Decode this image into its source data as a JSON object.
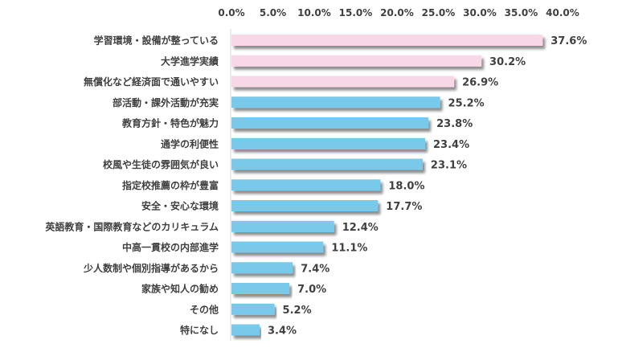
{
  "chart_data": {
    "type": "bar",
    "orientation": "horizontal",
    "title": "",
    "xlabel": "",
    "ylabel": "",
    "xlim": [
      0,
      40
    ],
    "grid": false,
    "tick_labels": [
      "0.0%",
      "5.0%",
      "10.0%",
      "15.0%",
      "20.0%",
      "25.0%",
      "30.0%",
      "35.0%",
      "40.0%"
    ],
    "categories": [
      "学習環境・設備が整っている",
      "大学進学実績",
      "無償化など経済面で通いやすい",
      "部活動・課外活動が充実",
      "教育方針・特色が魅力",
      "通学の利便性",
      "校風や生徒の雰囲気が良い",
      "指定校推薦の枠が豊富",
      "安全・安心な環境",
      "英語教育・国際教育などのカリキュラム",
      "中高一貫校の内部進学",
      "少人数制や個別指導があるから",
      "家族や知人の勧め",
      "その他",
      "特になし"
    ],
    "values": [
      37.6,
      30.2,
      26.9,
      25.2,
      23.8,
      23.4,
      23.1,
      18.0,
      17.7,
      12.4,
      11.1,
      7.4,
      7.0,
      5.2,
      3.4
    ],
    "value_labels": [
      "37.6%",
      "30.2%",
      "26.9%",
      "25.2%",
      "23.8%",
      "23.4%",
      "23.1%",
      "18.0%",
      "17.7%",
      "12.4%",
      "11.1%",
      "7.4%",
      "7.0%",
      "5.2%",
      "3.4%"
    ],
    "highlight_count": 3,
    "colors": {
      "highlight": "#f8d7e6",
      "normal": "#78c9ea",
      "shadow": "#9a9a9a",
      "axis": "#d9d9d9"
    }
  }
}
